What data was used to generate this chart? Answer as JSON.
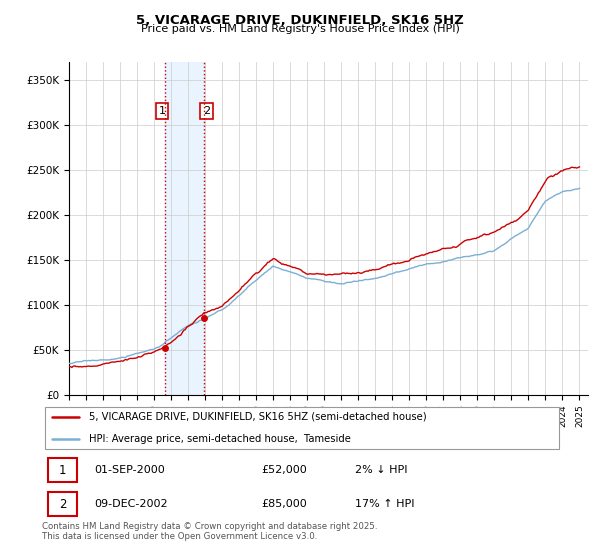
{
  "title": "5, VICARAGE DRIVE, DUKINFIELD, SK16 5HZ",
  "subtitle": "Price paid vs. HM Land Registry's House Price Index (HPI)",
  "ylim": [
    0,
    370000
  ],
  "yticks": [
    0,
    50000,
    100000,
    150000,
    200000,
    250000,
    300000,
    350000
  ],
  "ytick_labels": [
    "£0",
    "£50K",
    "£100K",
    "£150K",
    "£200K",
    "£250K",
    "£300K",
    "£350K"
  ],
  "x_start_year": 1995,
  "x_end_year": 2025,
  "sale1_t": 2000.667,
  "sale1_price": 52000,
  "sale2_t": 2002.917,
  "sale2_price": 85000,
  "property_line_color": "#cc0000",
  "hpi_line_color": "#7bafd4",
  "shaded_region_color": "#ddeeff",
  "vline_color": "#cc0000",
  "legend_property": "5, VICARAGE DRIVE, DUKINFIELD, SK16 5HZ (semi-detached house)",
  "legend_hpi": "HPI: Average price, semi-detached house,  Tameside",
  "table_row1": [
    "1",
    "01-SEP-2000",
    "£52,000",
    "2% ↓ HPI"
  ],
  "table_row2": [
    "2",
    "09-DEC-2002",
    "£85,000",
    "17% ↑ HPI"
  ],
  "footer": "Contains HM Land Registry data © Crown copyright and database right 2025.\nThis data is licensed under the Open Government Licence v3.0.",
  "background_color": "#ffffff",
  "plot_bg_color": "#ffffff",
  "grid_color": "#cccccc"
}
